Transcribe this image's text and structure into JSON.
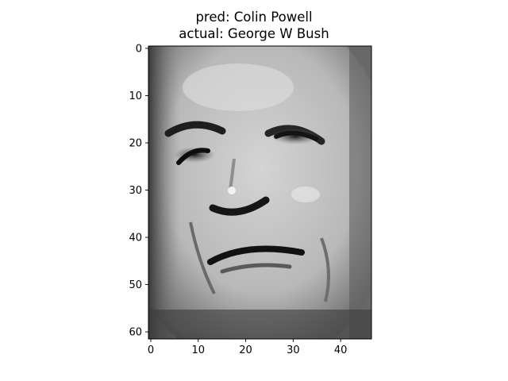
{
  "chart_data": {
    "type": "heatmap",
    "title_lines": [
      "pred: Colin Powell",
      "actual: George W Bush"
    ],
    "xlabel": "",
    "ylabel": "",
    "image_width": 47,
    "image_height": 62,
    "x_ticks": [
      0,
      10,
      20,
      30,
      40
    ],
    "y_ticks": [
      0,
      10,
      20,
      30,
      40,
      50,
      60
    ],
    "xlim": [
      -0.5,
      46.5
    ],
    "ylim": [
      61.5,
      -0.5
    ],
    "colormap": "gray",
    "grid": false
  }
}
